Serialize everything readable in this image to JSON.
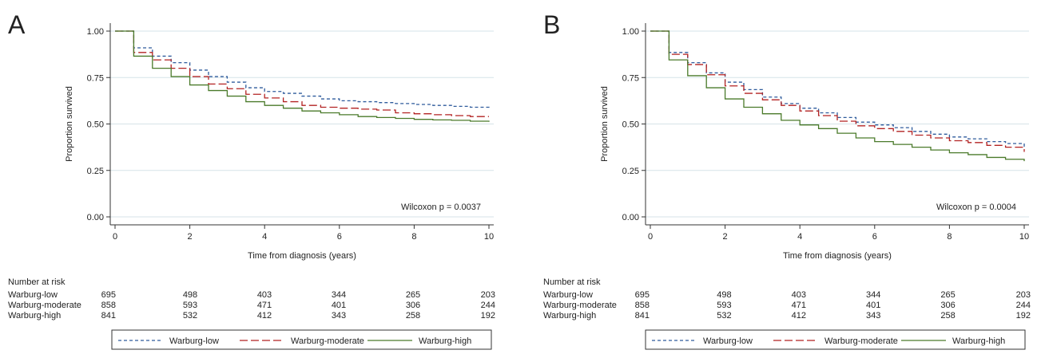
{
  "colors": {
    "series": [
      "#2f5b9c",
      "#b22222",
      "#4a7a2a"
    ],
    "grid": "#d6e3e8",
    "axis": "#333333",
    "text": "#222222"
  },
  "chart_data": [
    {
      "type": "line",
      "panel_label": "A",
      "title": "",
      "xlabel": "Time from diagnosis (years)",
      "ylabel": "Proportion survived",
      "xlim": [
        0,
        10
      ],
      "ylim": [
        0,
        1
      ],
      "xticks": [
        0,
        2,
        4,
        6,
        8,
        10
      ],
      "yticks": [
        0,
        0.25,
        0.5,
        0.75,
        1
      ],
      "ytick_labels": [
        "0.00",
        "0.25",
        "0.50",
        "0.75",
        "1.00"
      ],
      "grid": true,
      "annotation": "Wilcoxon p = 0.0037",
      "series": [
        {
          "name": "Warburg-low",
          "x": [
            0,
            0.5,
            1,
            1.5,
            2,
            2.5,
            3,
            3.5,
            4,
            4.5,
            5,
            5.5,
            6,
            6.5,
            7,
            7.5,
            8,
            8.5,
            9,
            9.5,
            10
          ],
          "y": [
            1,
            0.91,
            0.865,
            0.83,
            0.79,
            0.755,
            0.725,
            0.695,
            0.675,
            0.665,
            0.65,
            0.635,
            0.625,
            0.62,
            0.615,
            0.61,
            0.605,
            0.6,
            0.595,
            0.59,
            0.585
          ]
        },
        {
          "name": "Warburg-moderate",
          "x": [
            0,
            0.5,
            1,
            1.5,
            2,
            2.5,
            3,
            3.5,
            4,
            4.5,
            5,
            5.5,
            6,
            6.5,
            7,
            7.5,
            8,
            8.5,
            9,
            9.5,
            10
          ],
          "y": [
            1,
            0.885,
            0.845,
            0.8,
            0.755,
            0.715,
            0.69,
            0.66,
            0.64,
            0.62,
            0.6,
            0.59,
            0.585,
            0.58,
            0.575,
            0.56,
            0.555,
            0.55,
            0.545,
            0.54,
            0.54
          ]
        },
        {
          "name": "Warburg-high",
          "x": [
            0,
            0.5,
            1,
            1.5,
            2,
            2.5,
            3,
            3.5,
            4,
            4.5,
            5,
            5.5,
            6,
            6.5,
            7,
            7.5,
            8,
            8.5,
            9,
            9.5,
            10
          ],
          "y": [
            1,
            0.865,
            0.8,
            0.755,
            0.71,
            0.68,
            0.65,
            0.62,
            0.6,
            0.585,
            0.57,
            0.56,
            0.55,
            0.54,
            0.535,
            0.53,
            0.525,
            0.522,
            0.52,
            0.515,
            0.512
          ]
        }
      ],
      "risk_table": {
        "heading": "Number at risk",
        "times": [
          0,
          2,
          4,
          6,
          8,
          10
        ],
        "rows": [
          {
            "label": "Warburg-low",
            "values": [
              "695",
              "498",
              "403",
              "344",
              "265",
              "203"
            ]
          },
          {
            "label": "Warburg-moderate",
            "values": [
              "858",
              "593",
              "471",
              "401",
              "306",
              "244"
            ]
          },
          {
            "label": "Warburg-high",
            "values": [
              "841",
              "532",
              "412",
              "343",
              "258",
              "192"
            ]
          }
        ]
      },
      "legend": {
        "placement": "bottom",
        "entries": [
          "Warburg-low",
          "Warburg-moderate",
          "Warburg-high"
        ]
      }
    },
    {
      "type": "line",
      "panel_label": "B",
      "title": "",
      "xlabel": "Time from diagnosis (years)",
      "ylabel": "Proportion survived",
      "xlim": [
        0,
        10
      ],
      "ylim": [
        0,
        1
      ],
      "xticks": [
        0,
        2,
        4,
        6,
        8,
        10
      ],
      "yticks": [
        0,
        0.25,
        0.5,
        0.75,
        1
      ],
      "ytick_labels": [
        "0.00",
        "0.25",
        "0.50",
        "0.75",
        "1.00"
      ],
      "grid": true,
      "annotation": "Wilcoxon p = 0.0004",
      "series": [
        {
          "name": "Warburg-low",
          "x": [
            0,
            0.5,
            1,
            1.5,
            2,
            2.5,
            3,
            3.5,
            4,
            4.5,
            5,
            5.5,
            6,
            6.5,
            7,
            7.5,
            8,
            8.5,
            9,
            9.5,
            10
          ],
          "y": [
            1,
            0.885,
            0.83,
            0.775,
            0.725,
            0.685,
            0.645,
            0.61,
            0.585,
            0.56,
            0.535,
            0.51,
            0.495,
            0.48,
            0.46,
            0.445,
            0.43,
            0.42,
            0.405,
            0.395,
            0.375
          ]
        },
        {
          "name": "Warburg-moderate",
          "x": [
            0,
            0.5,
            1,
            1.5,
            2,
            2.5,
            3,
            3.5,
            4,
            4.5,
            5,
            5.5,
            6,
            6.5,
            7,
            7.5,
            8,
            8.5,
            9,
            9.5,
            10
          ],
          "y": [
            1,
            0.875,
            0.82,
            0.765,
            0.705,
            0.665,
            0.63,
            0.6,
            0.57,
            0.545,
            0.515,
            0.49,
            0.475,
            0.46,
            0.44,
            0.425,
            0.41,
            0.4,
            0.385,
            0.375,
            0.35
          ]
        },
        {
          "name": "Warburg-high",
          "x": [
            0,
            0.5,
            1,
            1.5,
            2,
            2.5,
            3,
            3.5,
            4,
            4.5,
            5,
            5.5,
            6,
            6.5,
            7,
            7.5,
            8,
            8.5,
            9,
            9.5,
            10
          ],
          "y": [
            1,
            0.845,
            0.76,
            0.695,
            0.635,
            0.59,
            0.555,
            0.52,
            0.495,
            0.475,
            0.45,
            0.425,
            0.405,
            0.39,
            0.375,
            0.36,
            0.345,
            0.335,
            0.32,
            0.31,
            0.3
          ]
        }
      ],
      "risk_table": {
        "heading": "Number at risk",
        "times": [
          0,
          2,
          4,
          6,
          8,
          10
        ],
        "rows": [
          {
            "label": "Warburg-low",
            "values": [
              "695",
              "498",
              "403",
              "344",
              "265",
              "203"
            ]
          },
          {
            "label": "Warburg-moderate",
            "values": [
              "858",
              "593",
              "471",
              "401",
              "306",
              "244"
            ]
          },
          {
            "label": "Warburg-high",
            "values": [
              "841",
              "532",
              "412",
              "343",
              "258",
              "192"
            ]
          }
        ]
      },
      "legend": {
        "placement": "bottom",
        "entries": [
          "Warburg-low",
          "Warburg-moderate",
          "Warburg-high"
        ]
      }
    }
  ]
}
